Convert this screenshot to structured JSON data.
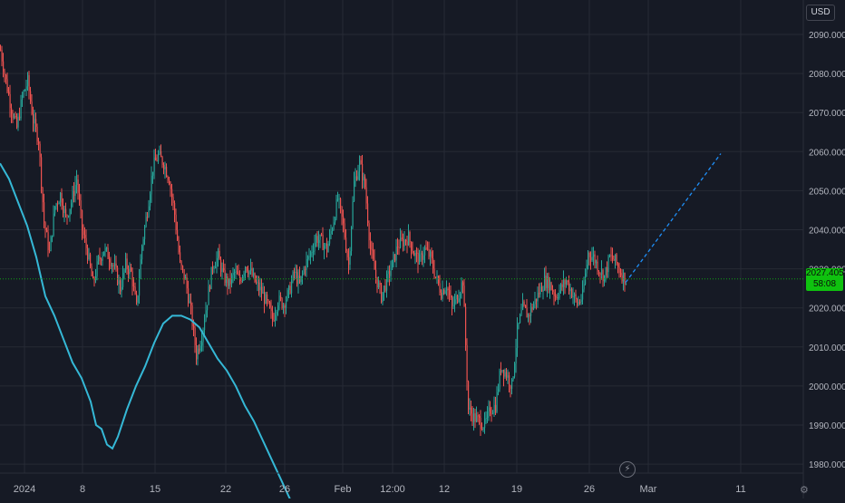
{
  "chart_data": {
    "type": "candlestick",
    "currency": "USD",
    "last_price": "2027.405",
    "countdown": "58:08",
    "y_ticks": [
      "2090.000",
      "2080.000",
      "2070.000",
      "2060.000",
      "2050.000",
      "2040.000",
      "2030.000",
      "2020.000",
      "2010.000",
      "2000.000",
      "1990.000",
      "1980.000"
    ],
    "ylim": [
      1975,
      2096
    ],
    "x_ticks": [
      "2024",
      "8",
      "15",
      "22",
      "26",
      "Feb",
      "12:00",
      "12",
      "19",
      "26",
      "Mar",
      "11"
    ],
    "price_path": [
      [
        0,
        2086
      ],
      [
        6,
        2078
      ],
      [
        12,
        2071
      ],
      [
        18,
        2066
      ],
      [
        24,
        2074
      ],
      [
        30,
        2078
      ],
      [
        36,
        2068
      ],
      [
        42,
        2063
      ],
      [
        48,
        2042
      ],
      [
        54,
        2034
      ],
      [
        60,
        2046
      ],
      [
        66,
        2049
      ],
      [
        72,
        2043
      ],
      [
        78,
        2047
      ],
      [
        84,
        2053
      ],
      [
        90,
        2040
      ],
      [
        96,
        2034
      ],
      [
        102,
        2026
      ],
      [
        108,
        2032
      ],
      [
        114,
        2035
      ],
      [
        120,
        2033
      ],
      [
        126,
        2030
      ],
      [
        132,
        2025
      ],
      [
        138,
        2031
      ],
      [
        144,
        2029
      ],
      [
        150,
        2020
      ],
      [
        156,
        2036
      ],
      [
        162,
        2045
      ],
      [
        168,
        2056
      ],
      [
        174,
        2059
      ],
      [
        180,
        2057
      ],
      [
        186,
        2053
      ],
      [
        192,
        2044
      ],
      [
        198,
        2031
      ],
      [
        204,
        2027
      ],
      [
        210,
        2019
      ],
      [
        216,
        2008
      ],
      [
        222,
        2013
      ],
      [
        228,
        2022
      ],
      [
        234,
        2031
      ],
      [
        240,
        2033
      ],
      [
        246,
        2028
      ],
      [
        252,
        2026
      ],
      [
        258,
        2029
      ],
      [
        264,
        2027
      ],
      [
        270,
        2031
      ],
      [
        276,
        2029
      ],
      [
        282,
        2026
      ],
      [
        288,
        2024
      ],
      [
        294,
        2021
      ],
      [
        300,
        2017
      ],
      [
        306,
        2022
      ],
      [
        312,
        2021
      ],
      [
        318,
        2024
      ],
      [
        324,
        2029
      ],
      [
        330,
        2026
      ],
      [
        336,
        2031
      ],
      [
        342,
        2034
      ],
      [
        348,
        2038
      ],
      [
        354,
        2037
      ],
      [
        360,
        2035
      ],
      [
        366,
        2041
      ],
      [
        372,
        2048
      ],
      [
        378,
        2041
      ],
      [
        384,
        2031
      ],
      [
        390,
        2052
      ],
      [
        396,
        2057
      ],
      [
        402,
        2051
      ],
      [
        408,
        2035
      ],
      [
        414,
        2028
      ],
      [
        420,
        2023
      ],
      [
        426,
        2027
      ],
      [
        432,
        2031
      ],
      [
        438,
        2036
      ],
      [
        444,
        2037
      ],
      [
        450,
        2038
      ],
      [
        456,
        2034
      ],
      [
        462,
        2032
      ],
      [
        468,
        2035
      ],
      [
        474,
        2033
      ],
      [
        480,
        2028
      ],
      [
        486,
        2024
      ],
      [
        492,
        2026
      ],
      [
        498,
        2020
      ],
      [
        504,
        2023
      ],
      [
        510,
        2027
      ],
      [
        516,
        1994
      ],
      [
        522,
        1992
      ],
      [
        528,
        1991
      ],
      [
        534,
        1990
      ],
      [
        540,
        1994
      ],
      [
        546,
        1995
      ],
      [
        552,
        2005
      ],
      [
        558,
        2003
      ],
      [
        564,
        2000
      ],
      [
        570,
        2014
      ],
      [
        576,
        2020
      ],
      [
        582,
        2018
      ],
      [
        588,
        2021
      ],
      [
        594,
        2024
      ],
      [
        600,
        2027
      ],
      [
        606,
        2026
      ],
      [
        612,
        2023
      ],
      [
        618,
        2025
      ],
      [
        624,
        2027
      ],
      [
        630,
        2024
      ],
      [
        636,
        2021
      ],
      [
        642,
        2023
      ],
      [
        648,
        2034
      ],
      [
        654,
        2033
      ],
      [
        660,
        2030
      ],
      [
        666,
        2028
      ],
      [
        672,
        2033
      ],
      [
        678,
        2032
      ],
      [
        684,
        2029
      ],
      [
        690,
        2027
      ]
    ],
    "ma_line": [
      [
        0,
        2057
      ],
      [
        10,
        2053
      ],
      [
        20,
        2047
      ],
      [
        30,
        2041
      ],
      [
        40,
        2033
      ],
      [
        50,
        2023
      ],
      [
        60,
        2018
      ],
      [
        70,
        2012
      ],
      [
        80,
        2006
      ],
      [
        90,
        2002
      ],
      [
        100,
        1996
      ],
      [
        106,
        1990
      ],
      [
        112,
        1989
      ],
      [
        118,
        1985
      ],
      [
        124,
        1984
      ],
      [
        130,
        1987
      ],
      [
        140,
        1994
      ],
      [
        150,
        2000
      ],
      [
        160,
        2005
      ],
      [
        170,
        2011
      ],
      [
        180,
        2016
      ],
      [
        190,
        2018
      ],
      [
        200,
        2018
      ],
      [
        210,
        2017
      ],
      [
        220,
        2015
      ],
      [
        230,
        2011
      ],
      [
        240,
        2007
      ],
      [
        250,
        2004
      ],
      [
        260,
        2000
      ],
      [
        270,
        1995
      ],
      [
        280,
        1991
      ],
      [
        290,
        1986
      ],
      [
        300,
        1981
      ],
      [
        310,
        1976
      ],
      [
        322,
        1970
      ]
    ],
    "projection": [
      [
        690,
        2026.5
      ],
      [
        795,
        2059.5
      ]
    ],
    "current_price_value": 2027.4,
    "colors": {
      "up": "#26a69a",
      "down": "#ef5350",
      "ma": "#35b8d6",
      "projection": "#1f8ff7",
      "price_tag": "#0fc20f",
      "background": "#161a25",
      "grid": "#262a35"
    }
  }
}
